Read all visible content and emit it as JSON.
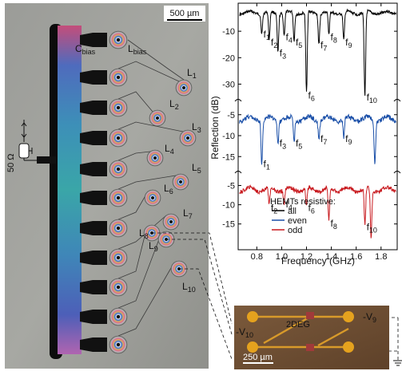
{
  "micrograph": {
    "scale_bar": "500 µm",
    "labels": {
      "c_bias": [
        "C",
        "bias"
      ],
      "l_bias": [
        "L",
        "bias"
      ],
      "resonators": [
        [
          "L",
          "1"
        ],
        [
          "L",
          "2"
        ],
        [
          "L",
          "3"
        ],
        [
          "L",
          "4"
        ],
        [
          "L",
          "5"
        ],
        [
          "L",
          "6"
        ],
        [
          "L",
          "7"
        ],
        [
          "L",
          "8"
        ],
        [
          "L",
          "9"
        ],
        [
          "L",
          "10"
        ]
      ]
    },
    "impedance_label": "50 Ω"
  },
  "inset": {
    "scale_bar": "250 µm",
    "label_2deg": "2DEG",
    "v9": [
      "-V",
      "9"
    ],
    "v10": [
      "-V",
      "10"
    ]
  },
  "chart_data": {
    "type": "line",
    "xlabel": "Frequency (GHz)",
    "ylabel": "Reflection (dB)",
    "xlim": [
      0.65,
      1.93
    ],
    "xticks": [
      "0.8",
      "1.0",
      "1.2",
      "1.4",
      "1.6",
      "1.8"
    ],
    "panels": [
      {
        "name": "all",
        "color": "#000000",
        "yticks": [
          "-10",
          "-20",
          "-30"
        ],
        "ylim": [
          -35,
          0
        ],
        "resonances": [
          {
            "label": [
              "f",
              "1"
            ],
            "freq": 0.84,
            "depth": -10
          },
          {
            "label": [
              "f",
              "2"
            ],
            "freq": 0.9,
            "depth": -13
          },
          {
            "label": [
              "f",
              "3"
            ],
            "freq": 0.97,
            "depth": -17
          },
          {
            "label": [
              "f",
              "4"
            ],
            "freq": 1.02,
            "depth": -11
          },
          {
            "label": [
              "f",
              "5"
            ],
            "freq": 1.1,
            "depth": -13
          },
          {
            "label": [
              "f",
              "6"
            ],
            "freq": 1.2,
            "depth": -33
          },
          {
            "label": [
              "f",
              "7"
            ],
            "freq": 1.3,
            "depth": -14
          },
          {
            "label": [
              "f",
              "8"
            ],
            "freq": 1.38,
            "depth": -11
          },
          {
            "label": [
              "f",
              "9"
            ],
            "freq": 1.5,
            "depth": -13
          },
          {
            "label": [
              "f",
              "10"
            ],
            "freq": 1.67,
            "depth": -35
          }
        ]
      },
      {
        "name": "even",
        "color": "#1a4fa8",
        "yticks": [
          "-5",
          "-10",
          "-15"
        ],
        "ylim": [
          -18,
          -2
        ],
        "resonances": [
          {
            "label": [
              "f",
              "1"
            ],
            "freq": 0.84,
            "depth": -16
          },
          {
            "label": [
              "f",
              "3"
            ],
            "freq": 0.97,
            "depth": -11
          },
          {
            "label": [
              "f",
              "5"
            ],
            "freq": 1.1,
            "depth": -11
          },
          {
            "label": [
              "f",
              "7"
            ],
            "freq": 1.3,
            "depth": -10
          },
          {
            "label": [
              "f",
              "9"
            ],
            "freq": 1.5,
            "depth": -10
          },
          {
            "label": null,
            "freq": 1.75,
            "depth": -16
          }
        ]
      },
      {
        "name": "odd",
        "color": "#c8191e",
        "yticks": [
          "-5",
          "-10",
          "-15"
        ],
        "ylim": [
          -19,
          -2
        ],
        "resonances": [
          {
            "label": [
              "f",
              "2"
            ],
            "freq": 0.9,
            "depth": -10
          },
          {
            "label": [
              "f",
              "4"
            ],
            "freq": 1.02,
            "depth": -9
          },
          {
            "label": [
              "f",
              "6"
            ],
            "freq": 1.2,
            "depth": -10
          },
          {
            "label": [
              "f",
              "8"
            ],
            "freq": 1.38,
            "depth": -14
          },
          {
            "label": [
              "f",
              "10"
            ],
            "freq": 1.67,
            "depth": -15
          },
          {
            "label": null,
            "freq": 1.72,
            "depth": -18
          }
        ]
      }
    ],
    "legend": {
      "title": "HEMTs resistive:",
      "entries": [
        "all",
        "even",
        "odd"
      ],
      "placement": "inside-bottom-left"
    }
  }
}
